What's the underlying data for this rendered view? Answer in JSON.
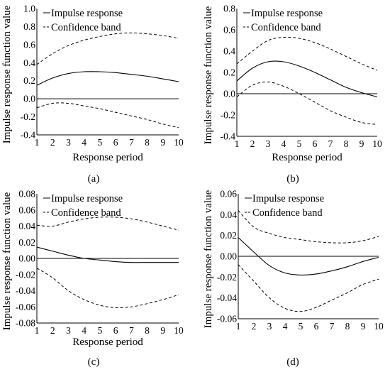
{
  "legend": {
    "series1": "Impulse response",
    "series2": "Confidence band"
  },
  "chart_data": [
    {
      "type": "line",
      "panel_label": "(a)",
      "xlabel": "Response period",
      "ylabel": "Impulse response function value",
      "x": [
        1,
        2,
        3,
        4,
        5,
        6,
        7,
        8,
        9,
        10
      ],
      "xticks": [
        "1",
        "2",
        "3",
        "4",
        "5",
        "6",
        "7",
        "8",
        "9",
        "10"
      ],
      "ylim": [
        -0.4,
        1.0
      ],
      "yticks": [
        "-0.4",
        "-0.2",
        "0.0",
        "0.2",
        "0.4",
        "0.6",
        "0.8",
        "1.0"
      ],
      "ytick_values": [
        -0.4,
        -0.2,
        0.0,
        0.2,
        0.4,
        0.6,
        0.8,
        1.0
      ],
      "legend_position": "top-left",
      "series": [
        {
          "name": "Impulse response",
          "style": "solid",
          "values": [
            0.15,
            0.23,
            0.28,
            0.3,
            0.3,
            0.29,
            0.27,
            0.25,
            0.22,
            0.19
          ]
        },
        {
          "name": "Confidence band",
          "style": "dashed",
          "values": [
            0.38,
            0.5,
            0.59,
            0.65,
            0.69,
            0.72,
            0.73,
            0.72,
            0.7,
            0.67
          ]
        },
        {
          "name": "",
          "style": "dashed",
          "values": [
            -0.1,
            -0.05,
            -0.05,
            -0.08,
            -0.11,
            -0.15,
            -0.19,
            -0.23,
            -0.28,
            -0.32
          ]
        }
      ]
    },
    {
      "type": "line",
      "panel_label": "(b)",
      "xlabel": "Response period",
      "ylabel": "Impulse response function value",
      "x": [
        1,
        2,
        3,
        4,
        5,
        6,
        7,
        8,
        9,
        10
      ],
      "xticks": [
        "1",
        "2",
        "3",
        "4",
        "5",
        "6",
        "7",
        "8",
        "9",
        "10"
      ],
      "ylim": [
        -0.4,
        0.8
      ],
      "yticks": [
        "-0.4",
        "-0.2",
        "0.0",
        "0.2",
        "0.4",
        "0.6",
        "0.8"
      ],
      "ytick_values": [
        -0.4,
        -0.2,
        0.0,
        0.2,
        0.4,
        0.6,
        0.8
      ],
      "legend_position": "top-left",
      "series": [
        {
          "name": "Impulse response",
          "style": "solid",
          "values": [
            0.12,
            0.24,
            0.3,
            0.3,
            0.26,
            0.2,
            0.13,
            0.06,
            0.01,
            -0.03
          ]
        },
        {
          "name": "Confidence band",
          "style": "dashed",
          "values": [
            0.28,
            0.4,
            0.5,
            0.53,
            0.52,
            0.48,
            0.42,
            0.35,
            0.28,
            0.22
          ]
        },
        {
          "name": "",
          "style": "dashed",
          "values": [
            -0.03,
            0.08,
            0.11,
            0.07,
            0.0,
            -0.08,
            -0.16,
            -0.22,
            -0.27,
            -0.29
          ]
        }
      ]
    },
    {
      "type": "line",
      "panel_label": "(c)",
      "xlabel": "Response period",
      "ylabel": "Impulse response function value",
      "x": [
        1,
        2,
        3,
        4,
        5,
        6,
        7,
        8,
        9,
        10
      ],
      "xticks": [
        "1",
        "2",
        "3",
        "4",
        "5",
        "6",
        "7",
        "8",
        "9",
        "10"
      ],
      "ylim": [
        -0.08,
        0.08
      ],
      "yticks": [
        "-0.08",
        "-0.06",
        "-0.04",
        "-0.02",
        "0.00",
        "0.02",
        "0.04",
        "0.06",
        "0.08"
      ],
      "ytick_values": [
        -0.08,
        -0.06,
        -0.04,
        -0.02,
        0.0,
        0.02,
        0.04,
        0.06,
        0.08
      ],
      "legend_position": "top-left",
      "series": [
        {
          "name": "Impulse response",
          "style": "solid",
          "values": [
            0.014,
            0.009,
            0.004,
            0.0,
            -0.002,
            -0.004,
            -0.005,
            -0.005,
            -0.005,
            -0.005
          ]
        },
        {
          "name": "Confidence band",
          "style": "dashed",
          "values": [
            0.041,
            0.04,
            0.045,
            0.049,
            0.051,
            0.051,
            0.049,
            0.045,
            0.04,
            0.035
          ]
        },
        {
          "name": "",
          "style": "dashed",
          "values": [
            -0.012,
            -0.024,
            -0.04,
            -0.051,
            -0.058,
            -0.061,
            -0.06,
            -0.056,
            -0.051,
            -0.045
          ]
        }
      ]
    },
    {
      "type": "line",
      "panel_label": "(d)",
      "xlabel": "",
      "ylabel": "Impulse response function value",
      "x": [
        1,
        2,
        3,
        4,
        5,
        6,
        7,
        8,
        9,
        10
      ],
      "xticks": [
        "1",
        "2",
        "3",
        "4",
        "5",
        "6",
        "7",
        "8",
        "9",
        "10"
      ],
      "ylim": [
        -0.06,
        0.06
      ],
      "yticks": [
        "-0.06",
        "-0.04",
        "-0.02",
        "0.00",
        "0.02",
        "0.04",
        "0.06"
      ],
      "ytick_values": [
        -0.06,
        -0.04,
        -0.02,
        0.0,
        0.02,
        0.04,
        0.06
      ],
      "legend_position": "top-left",
      "series": [
        {
          "name": "Impulse response",
          "style": "solid",
          "values": [
            0.018,
            0.004,
            -0.009,
            -0.016,
            -0.018,
            -0.017,
            -0.014,
            -0.01,
            -0.005,
            -0.001
          ]
        },
        {
          "name": "Confidence band",
          "style": "dashed",
          "values": [
            0.044,
            0.028,
            0.022,
            0.018,
            0.016,
            0.014,
            0.013,
            0.013,
            0.015,
            0.019
          ]
        },
        {
          "name": "",
          "style": "dashed",
          "values": [
            -0.008,
            -0.024,
            -0.04,
            -0.05,
            -0.053,
            -0.049,
            -0.042,
            -0.035,
            -0.027,
            -0.022
          ]
        }
      ]
    }
  ]
}
